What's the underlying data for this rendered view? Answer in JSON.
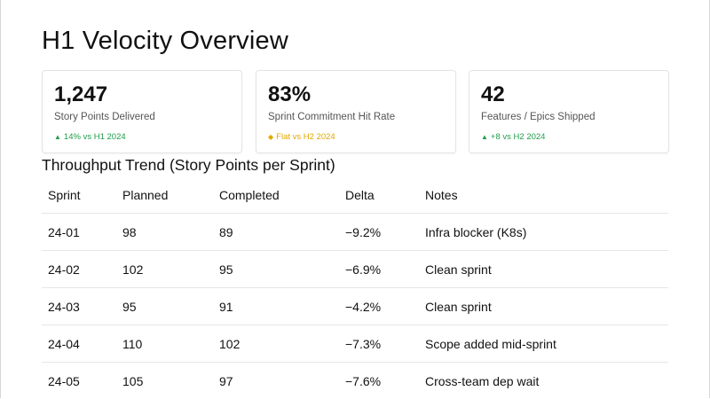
{
  "page": {
    "title": "H1 Velocity Overview"
  },
  "colors": {
    "positive": "#1e9e4a",
    "flat": "#e0a800",
    "border": "#e4e4e4"
  },
  "kpis": [
    {
      "value": "1,247",
      "label": "Story Points Delivered",
      "delta_icon": "triangle-up-icon",
      "delta_glyph": "▲",
      "delta": "14% vs H1 2024",
      "tone": "positive"
    },
    {
      "value": "83%",
      "label": "Sprint Commitment Hit Rate",
      "delta_icon": "diamond-icon",
      "delta_glyph": "◆",
      "delta": "Flat vs H2 2024",
      "tone": "flat"
    },
    {
      "value": "42",
      "label": "Features / Epics Shipped",
      "delta_icon": "triangle-up-icon",
      "delta_glyph": "▲",
      "delta": "+8 vs H2 2024",
      "tone": "positive"
    }
  ],
  "trend": {
    "title": "Throughput Trend (Story Points per Sprint)",
    "columns": [
      "Sprint",
      "Planned",
      "Completed",
      "Delta",
      "Notes"
    ],
    "rows": [
      {
        "sprint": "24-01",
        "planned": "98",
        "completed": "89",
        "delta": "−9.2%",
        "notes": "Infra blocker (K8s)"
      },
      {
        "sprint": "24-02",
        "planned": "102",
        "completed": "95",
        "delta": "−6.9%",
        "notes": "Clean sprint"
      },
      {
        "sprint": "24-03",
        "planned": "95",
        "completed": "91",
        "delta": "−4.2%",
        "notes": "Clean sprint"
      },
      {
        "sprint": "24-04",
        "planned": "110",
        "completed": "102",
        "delta": "−7.3%",
        "notes": "Scope added mid-sprint"
      },
      {
        "sprint": "24-05",
        "planned": "105",
        "completed": "97",
        "delta": "−7.6%",
        "notes": "Cross-team dep wait"
      }
    ]
  }
}
